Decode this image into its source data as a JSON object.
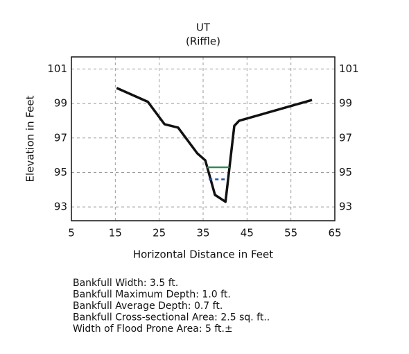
{
  "chart_data": {
    "type": "line",
    "title": "UT",
    "subtitle": "(Riffle)",
    "x_label": "Horizontal Distance in Feet",
    "y_label": "Elevation in Feet",
    "xlim": [
      5,
      65
    ],
    "ylim": [
      92.2,
      101.7
    ],
    "xticks": [
      5,
      15,
      25,
      35,
      45,
      55,
      65
    ],
    "yticks": [
      93,
      95,
      97,
      99,
      101
    ],
    "grid": true,
    "series": [
      {
        "color": "#111111",
        "dash": false,
        "x": [
          15.3,
          22.4,
          26.2,
          29.3,
          33.7,
          35.5,
          37.7,
          40.1,
          42.1,
          43.2,
          59.8
        ],
        "values": [
          99.9,
          99.1,
          97.8,
          97.6,
          96.1,
          95.7,
          93.7,
          93.3,
          97.7,
          98.0,
          99.2
        ]
      },
      {
        "color": "#2e8b57",
        "dash": false,
        "x": [
          35.8,
          41.0
        ],
        "values": [
          95.3,
          95.3
        ]
      },
      {
        "color": "#1f4fbf",
        "dash": true,
        "x": [
          36.3,
          40.0
        ],
        "values": [
          94.6,
          94.6
        ]
      }
    ],
    "annotations": [
      "Bankfull Width:  3.5  ft.",
      "Bankfull Maximum  Depth:  1.0  ft.",
      "Bankfull Average  Depth:  0.7  ft.",
      "Bankfull Cross-sectional Area:  2.5  sq. ft..",
      "Width  of Flood Prone Area:  5  ft.±"
    ]
  }
}
